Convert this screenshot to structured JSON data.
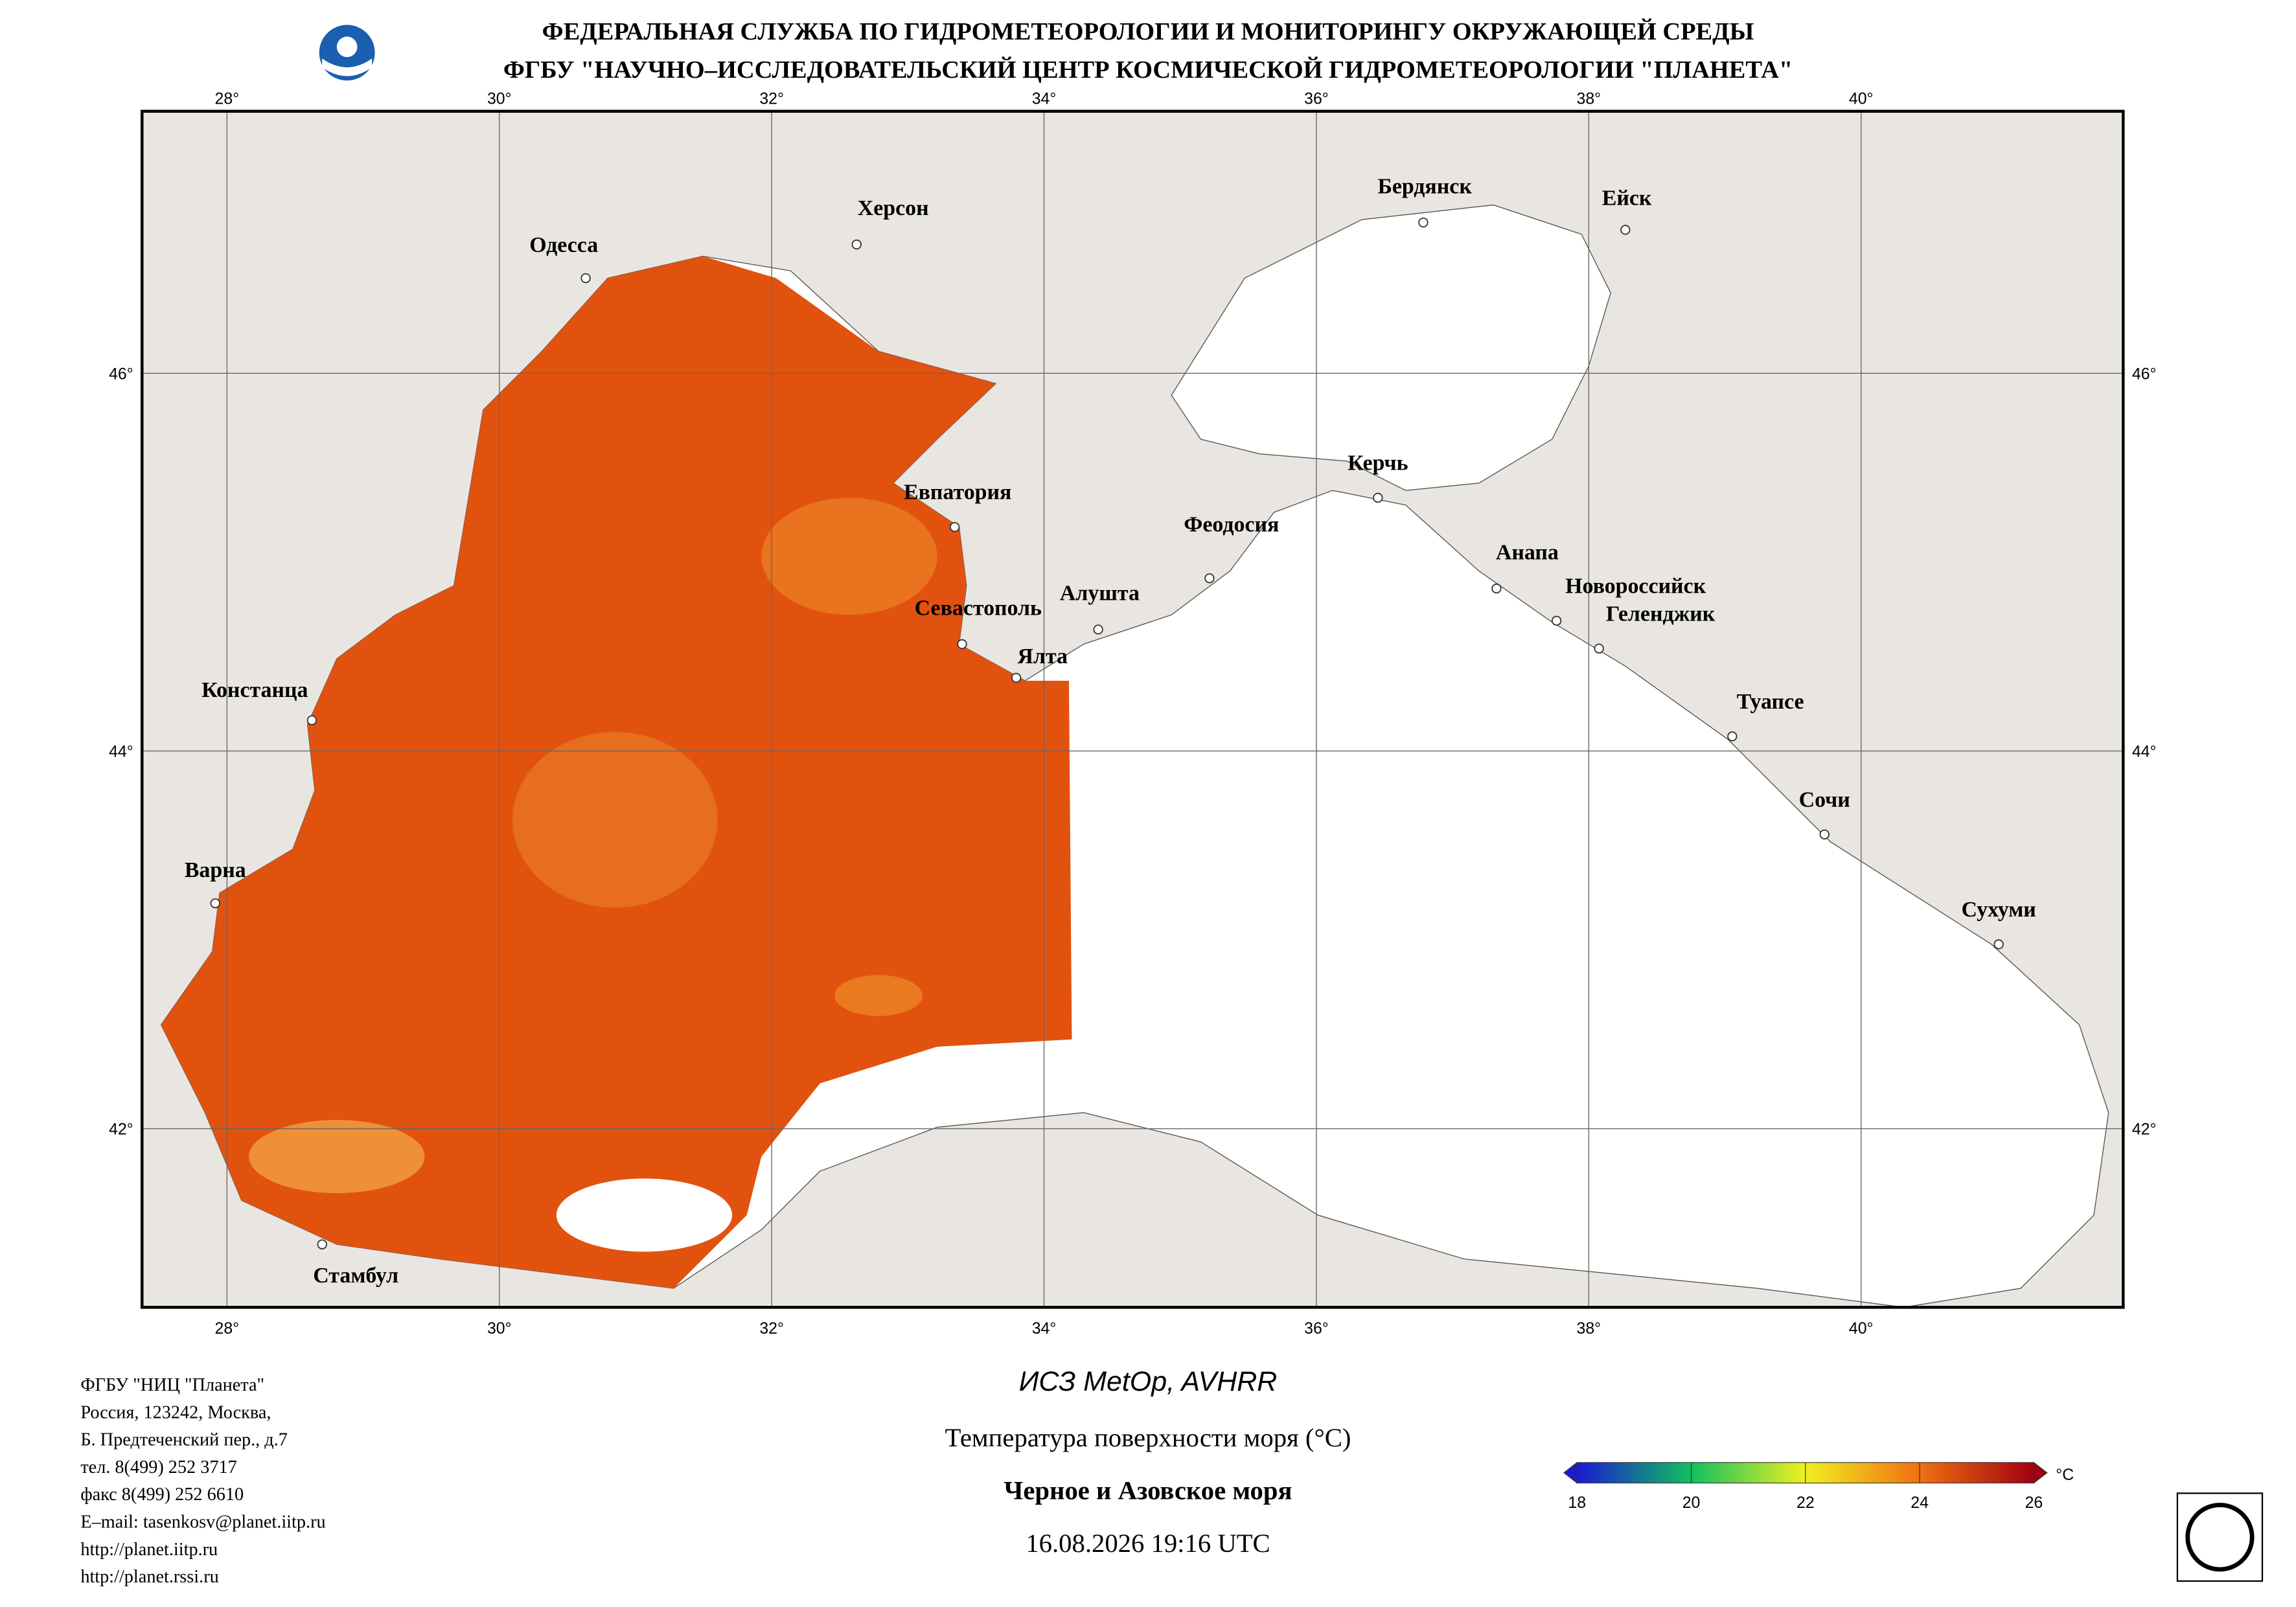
{
  "header": {
    "line1": "ФЕДЕРАЛЬНАЯ СЛУЖБА ПО ГИДРОМЕТЕОРОЛОГИИ И МОНИТОРИНГУ ОКРУЖАЮЩЕЙ СРЕДЫ",
    "line2": "ФГБУ \"НАУЧНО–ИССЛЕДОВАТЕЛЬСКИЙ ЦЕНТР КОСМИЧЕСКОЙ ГИДРОМЕТЕОРОЛОГИИ \"ПЛАНЕТА\""
  },
  "map": {
    "lon_ticks": [
      {
        "value": 28,
        "label": "28°"
      },
      {
        "value": 30,
        "label": "30°"
      },
      {
        "value": 32,
        "label": "32°"
      },
      {
        "value": 34,
        "label": "34°"
      },
      {
        "value": 36,
        "label": "36°"
      },
      {
        "value": 38,
        "label": "38°"
      },
      {
        "value": 40,
        "label": "40°"
      }
    ],
    "lat_ticks": [
      {
        "value": 46,
        "label": "46°"
      },
      {
        "value": 44,
        "label": "44°"
      },
      {
        "value": 42,
        "label": "42°"
      }
    ],
    "cities": [
      "Одесса",
      "Херсон",
      "Бердянск",
      "Ейск",
      "Евпатория",
      "Керчь",
      "Феодосия",
      "Анапа",
      "Новороссийск",
      "Геленджик",
      "Алушта",
      "Севастополь",
      "Ялта",
      "Констанца",
      "Туапсе",
      "Сочи",
      "Варна",
      "Сухуми",
      "Стамбул"
    ]
  },
  "legend": {
    "satellite": "ИСЗ MetOp, AVHRR",
    "parameter": "Температура поверхности моря (°C)",
    "region": "Черное и Азовское моря",
    "datetime": "16.08.2026 19:16 UTC",
    "colorbar": {
      "lim": [
        18,
        26
      ],
      "ticks": [
        18,
        20,
        22,
        24,
        26
      ],
      "unit": "°C"
    }
  },
  "contacts": [
    "ФГБУ \"НИЦ \"Планета\"",
    "Россия, 123242, Москва,",
    "Б. Предтеченский пер., д.7",
    "тел. 8(499) 252 3717",
    "факс 8(499) 252 6610",
    "E–mail: tasenkosv@planet.iitp.ru",
    "http://planet.iitp.ru",
    "http://planet.rssi.ru"
  ]
}
